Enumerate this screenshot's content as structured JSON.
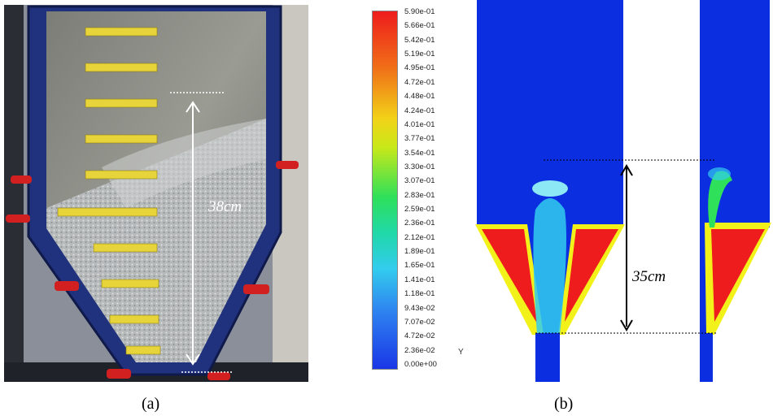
{
  "panel_a": {
    "caption": "(a)",
    "measurement_label": "38cm"
  },
  "panel_b": {
    "caption": "(b)",
    "measurement_label": "35cm",
    "axis_label": "Y",
    "colorbar_ticks": [
      "5.90e-01",
      "5.66e-01",
      "5.42e-01",
      "5.19e-01",
      "4.95e-01",
      "4.72e-01",
      "4.48e-01",
      "4.24e-01",
      "4.01e-01",
      "3.77e-01",
      "3.54e-01",
      "3.30e-01",
      "3.07e-01",
      "2.83e-01",
      "2.59e-01",
      "2.36e-01",
      "2.12e-01",
      "1.89e-01",
      "1.65e-01",
      "1.41e-01",
      "1.18e-01",
      "9.43e-02",
      "7.07e-02",
      "4.72e-02",
      "2.36e-02",
      "0.00e+00"
    ],
    "colors": {
      "background": "#0a2ee0",
      "high": "#ee1c1c",
      "rim_yellow": "#f2f21a",
      "rim_green": "#2ee05a",
      "cyan": "#33ccee"
    }
  }
}
